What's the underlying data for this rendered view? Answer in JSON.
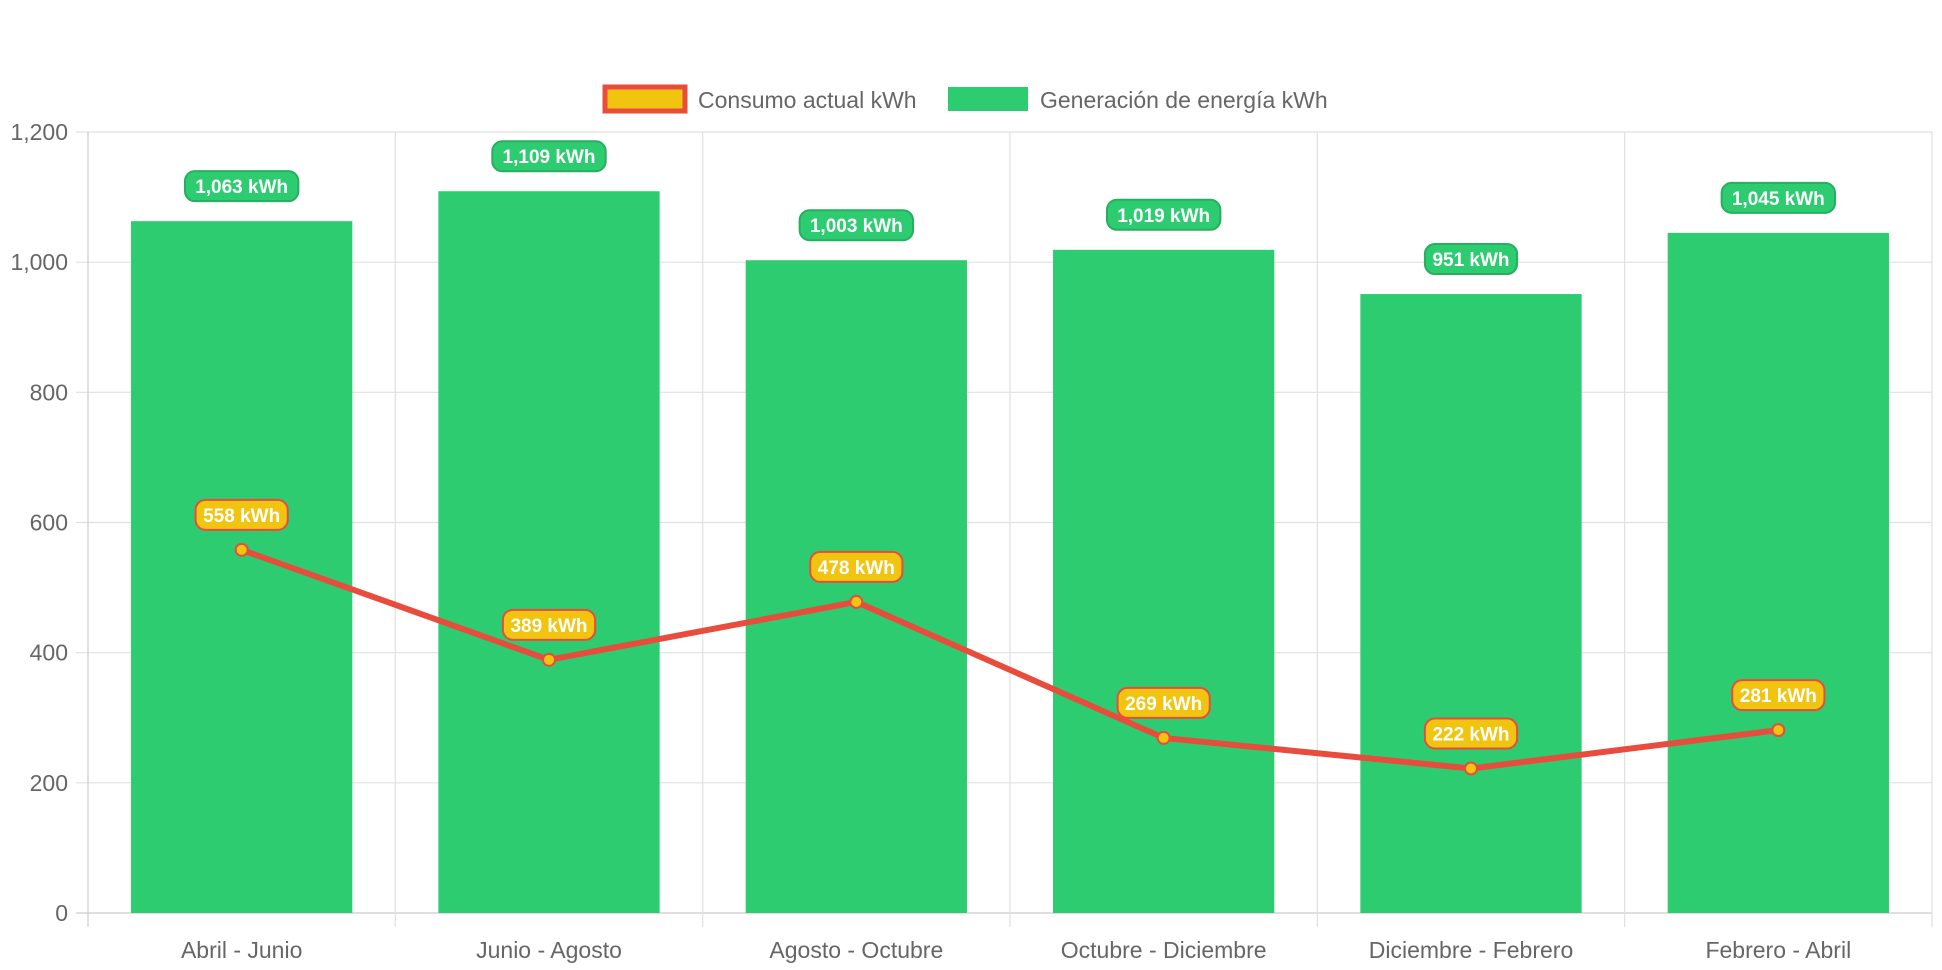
{
  "chart_data": {
    "type": "bar",
    "title": "",
    "xlabel": "",
    "ylabel": "",
    "ylim": [
      0,
      1200
    ],
    "ytick_step": 200,
    "ytick_labels": [
      "0",
      "200",
      "400",
      "600",
      "800",
      "1,000",
      "1,200"
    ],
    "grid": true,
    "legend_position": "top-center",
    "categories": [
      "Abril - Junio",
      "Junio - Agosto",
      "Agosto - Octubre",
      "Octubre - Diciembre",
      "Diciembre - Febrero",
      "Febrero - Abril"
    ],
    "series": [
      {
        "name": "Consumo actual kWh",
        "type": "line",
        "color": "#e74c3c",
        "fill_color": "#f1c40f",
        "values": [
          558,
          389,
          478,
          269,
          222,
          281
        ],
        "labels": [
          "558 kWh",
          "389 kWh",
          "478 kWh",
          "269 kWh",
          "222 kWh",
          "281 kWh"
        ]
      },
      {
        "name": "Generación de energía kWh",
        "type": "bar",
        "color": "#2ecc71",
        "border_color": "#27ae60",
        "values": [
          1063,
          1109,
          1003,
          1019,
          951,
          1045
        ],
        "labels": [
          "1,063 kWh",
          "1,109 kWh",
          "1,003 kWh",
          "1,019 kWh",
          "951 kWh",
          "1,045 kWh"
        ]
      }
    ]
  },
  "colors": {
    "grid": "#e0e0e0",
    "axis": "#cccccc",
    "tick_text": "#666666"
  }
}
